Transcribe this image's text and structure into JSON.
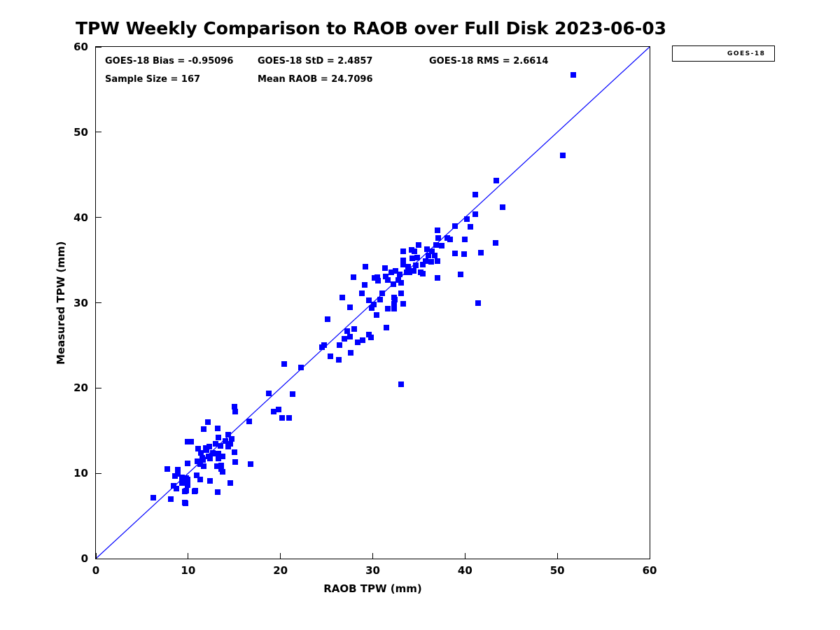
{
  "title": "TPW Weekly Comparison to RAOB over Full Disk 2023-06-03",
  "legend": {
    "label": "GOES-18",
    "marker_color": "#0000ff"
  },
  "chart_data": {
    "type": "scatter",
    "title": "TPW Weekly Comparison to RAOB over Full Disk 2023-06-03",
    "xlabel": "RAOB TPW (mm)",
    "ylabel": "Measured TPW (mm)",
    "xlim": [
      0,
      60
    ],
    "ylim": [
      0,
      60
    ],
    "x_ticks": [
      0,
      10,
      20,
      30,
      40,
      50,
      60
    ],
    "y_ticks": [
      0,
      10,
      20,
      30,
      40,
      50,
      60
    ],
    "grid": false,
    "legend_position": "outside-upper-right",
    "annotations": {
      "bias": {
        "text": "GOES-18 Bias = -0.95096"
      },
      "std": {
        "text": "GOES-18 StD = 2.4857"
      },
      "rms": {
        "text": "GOES-18 RMS = 2.6614"
      },
      "sample_size": {
        "text": "Sample Size = 167"
      },
      "mean_raob": {
        "text": "Mean RAOB = 24.7096"
      }
    },
    "reference_line": {
      "x": [
        0,
        60
      ],
      "y": [
        0,
        60
      ],
      "color": "#0000ff",
      "style": "solid"
    },
    "series": [
      {
        "name": "GOES-18",
        "marker": "square",
        "color": "#0000ff",
        "points": [
          [
            6.2,
            7.1
          ],
          [
            7.7,
            10.5
          ],
          [
            8.1,
            7.0
          ],
          [
            8.4,
            8.5
          ],
          [
            8.6,
            9.7
          ],
          [
            8.7,
            8.2
          ],
          [
            8.9,
            10.4
          ],
          [
            8.9,
            9.9
          ],
          [
            9.3,
            9.5
          ],
          [
            9.3,
            8.9
          ],
          [
            9.6,
            6.6
          ],
          [
            9.6,
            7.9
          ],
          [
            9.7,
            6.5
          ],
          [
            9.8,
            9.4
          ],
          [
            9.8,
            8.0
          ],
          [
            9.9,
            11.2
          ],
          [
            9.9,
            9.3
          ],
          [
            9.9,
            8.6
          ],
          [
            9.9,
            13.7
          ],
          [
            10.3,
            13.7
          ],
          [
            10.7,
            7.9
          ],
          [
            10.8,
            8.0
          ],
          [
            10.9,
            9.8
          ],
          [
            11.0,
            11.4
          ],
          [
            11.1,
            12.9
          ],
          [
            11.3,
            11.1
          ],
          [
            11.3,
            9.3
          ],
          [
            11.4,
            12.4
          ],
          [
            11.5,
            11.8
          ],
          [
            11.6,
            11.6
          ],
          [
            11.7,
            10.8
          ],
          [
            11.7,
            15.2
          ],
          [
            11.9,
            13.0
          ],
          [
            12.0,
            12.7
          ],
          [
            12.1,
            16.0
          ],
          [
            12.2,
            12.0
          ],
          [
            12.3,
            13.1
          ],
          [
            12.4,
            11.7
          ],
          [
            12.4,
            9.1
          ],
          [
            12.7,
            12.4
          ],
          [
            12.9,
            12.3
          ],
          [
            13.0,
            13.5
          ],
          [
            13.1,
            10.8
          ],
          [
            13.2,
            15.3
          ],
          [
            13.2,
            7.8
          ],
          [
            13.3,
            12.3
          ],
          [
            13.3,
            11.7
          ],
          [
            13.3,
            14.2
          ],
          [
            13.5,
            13.2
          ],
          [
            13.6,
            10.9
          ],
          [
            13.6,
            10.5
          ],
          [
            13.7,
            12.0
          ],
          [
            13.7,
            10.2
          ],
          [
            14.0,
            13.8
          ],
          [
            14.3,
            14.5
          ],
          [
            14.3,
            13.1
          ],
          [
            14.6,
            13.5
          ],
          [
            14.6,
            8.9
          ],
          [
            14.7,
            14.0
          ],
          [
            15.0,
            12.5
          ],
          [
            15.0,
            17.8
          ],
          [
            15.1,
            17.2
          ],
          [
            15.1,
            11.3
          ],
          [
            16.6,
            16.1
          ],
          [
            16.8,
            11.1
          ],
          [
            18.7,
            19.4
          ],
          [
            19.3,
            17.2
          ],
          [
            19.8,
            17.5
          ],
          [
            20.2,
            16.5
          ],
          [
            20.9,
            16.5
          ],
          [
            21.3,
            19.3
          ],
          [
            20.4,
            22.8
          ],
          [
            22.2,
            22.4
          ],
          [
            24.5,
            24.8
          ],
          [
            24.7,
            25.0
          ],
          [
            25.1,
            28.1
          ],
          [
            25.4,
            23.7
          ],
          [
            26.3,
            23.3
          ],
          [
            26.4,
            25.0
          ],
          [
            26.7,
            30.6
          ],
          [
            26.9,
            25.8
          ],
          [
            27.2,
            26.7
          ],
          [
            27.5,
            26.0
          ],
          [
            27.5,
            29.5
          ],
          [
            27.6,
            24.1
          ],
          [
            28.0,
            26.9
          ],
          [
            28.4,
            25.4
          ],
          [
            28.9,
            25.6
          ],
          [
            29.6,
            26.3
          ],
          [
            29.8,
            25.9
          ],
          [
            28.8,
            31.1
          ],
          [
            29.6,
            30.3
          ],
          [
            29.9,
            29.4
          ],
          [
            30.1,
            29.8
          ],
          [
            30.4,
            28.6
          ],
          [
            30.8,
            30.4
          ],
          [
            31.0,
            31.1
          ],
          [
            31.5,
            27.1
          ],
          [
            31.6,
            29.3
          ],
          [
            32.3,
            29.9
          ],
          [
            32.3,
            29.3
          ],
          [
            32.4,
            30.4
          ],
          [
            33.3,
            29.9
          ],
          [
            33.1,
            20.4
          ],
          [
            27.9,
            33.0
          ],
          [
            29.2,
            34.2
          ],
          [
            29.1,
            32.1
          ],
          [
            30.2,
            32.9
          ],
          [
            30.5,
            33.0
          ],
          [
            30.6,
            32.6
          ],
          [
            31.3,
            34.1
          ],
          [
            31.4,
            33.1
          ],
          [
            31.6,
            32.7
          ],
          [
            32.0,
            33.6
          ],
          [
            32.2,
            32.2
          ],
          [
            32.3,
            30.6
          ],
          [
            32.5,
            33.7
          ],
          [
            32.8,
            32.7
          ],
          [
            32.9,
            33.3
          ],
          [
            33.1,
            32.3
          ],
          [
            33.1,
            31.1
          ],
          [
            33.3,
            36.0
          ],
          [
            33.3,
            35.0
          ],
          [
            33.3,
            34.5
          ],
          [
            33.7,
            33.6
          ],
          [
            33.8,
            34.2
          ],
          [
            34.0,
            33.6
          ],
          [
            34.2,
            36.2
          ],
          [
            34.3,
            35.2
          ],
          [
            34.4,
            33.7
          ],
          [
            34.5,
            36.0
          ],
          [
            34.7,
            34.4
          ],
          [
            34.8,
            35.3
          ],
          [
            35.0,
            36.8
          ],
          [
            35.2,
            33.6
          ],
          [
            35.4,
            33.4
          ],
          [
            35.4,
            34.5
          ],
          [
            35.7,
            34.9
          ],
          [
            35.9,
            36.3
          ],
          [
            36.0,
            35.5
          ],
          [
            36.3,
            34.8
          ],
          [
            36.4,
            36.0
          ],
          [
            36.7,
            35.5
          ],
          [
            36.9,
            36.8
          ],
          [
            37.0,
            34.9
          ],
          [
            37.0,
            38.5
          ],
          [
            37.0,
            32.9
          ],
          [
            37.1,
            37.6
          ],
          [
            37.5,
            36.7
          ],
          [
            38.1,
            37.6
          ],
          [
            38.4,
            37.4
          ],
          [
            38.9,
            39.0
          ],
          [
            38.9,
            35.8
          ],
          [
            39.5,
            33.3
          ],
          [
            39.9,
            35.7
          ],
          [
            40.0,
            37.4
          ],
          [
            40.2,
            39.8
          ],
          [
            40.6,
            38.9
          ],
          [
            41.1,
            40.4
          ],
          [
            41.1,
            42.7
          ],
          [
            41.4,
            30.0
          ],
          [
            41.7,
            35.9
          ],
          [
            43.3,
            37.0
          ],
          [
            43.4,
            44.3
          ],
          [
            44.1,
            41.2
          ],
          [
            50.6,
            47.3
          ],
          [
            51.7,
            56.7
          ]
        ]
      }
    ]
  }
}
